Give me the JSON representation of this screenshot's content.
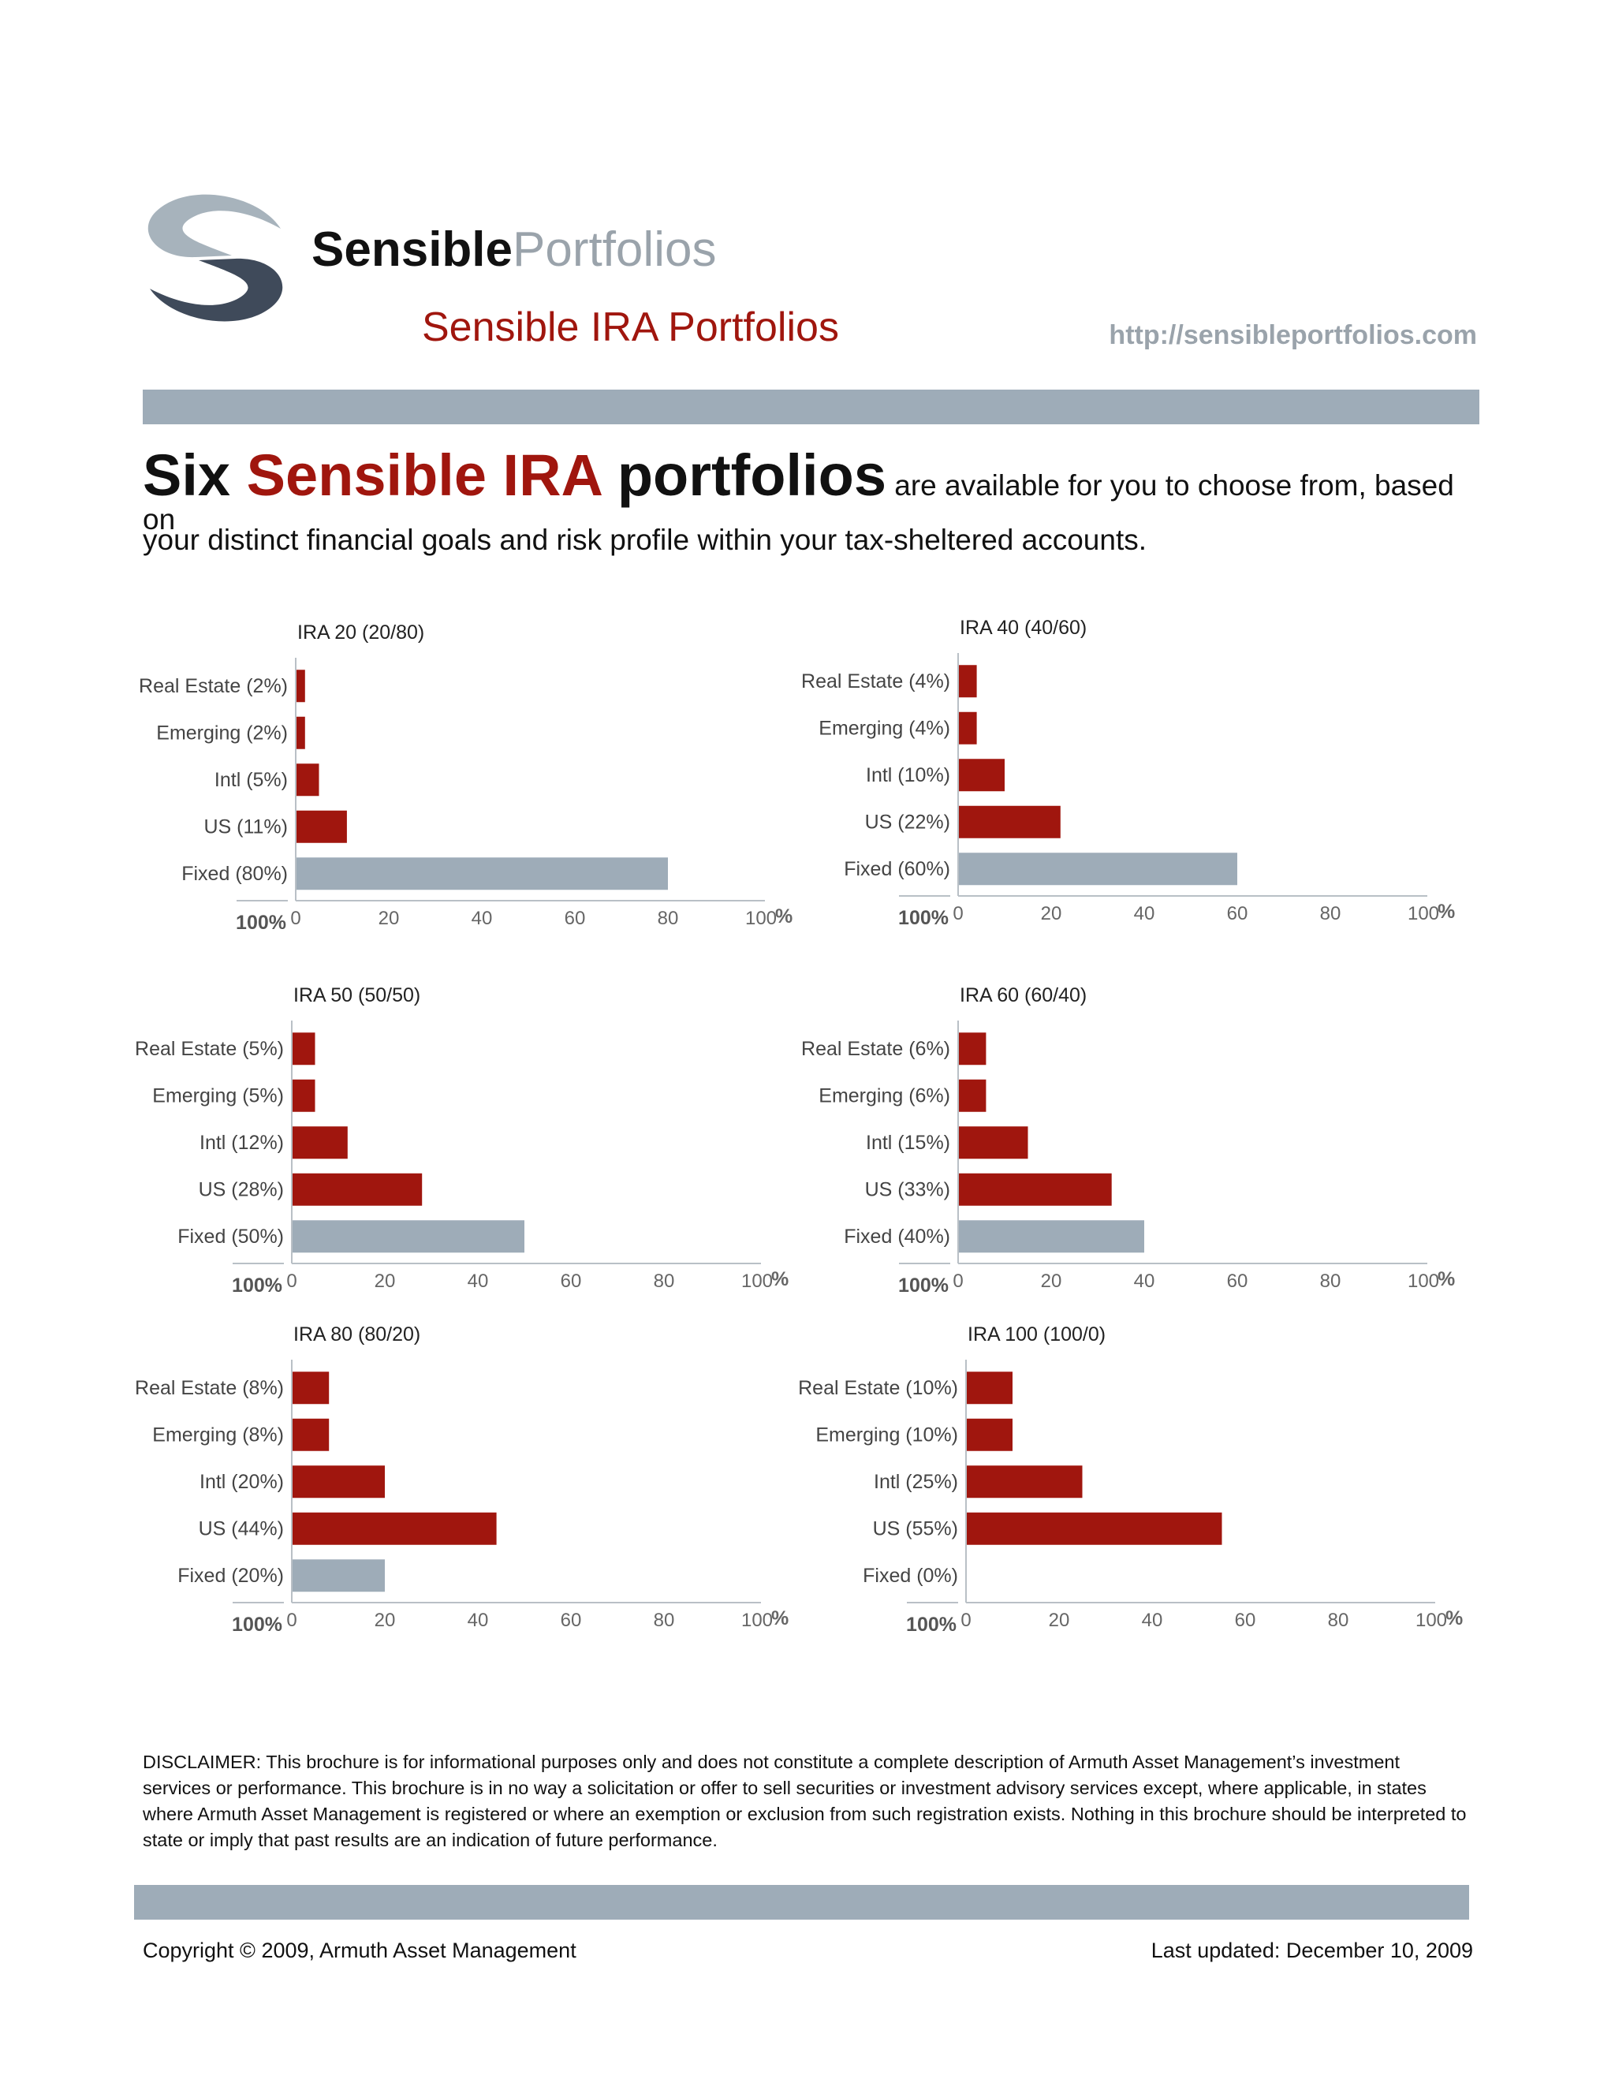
{
  "header": {
    "brand_bold": "Sensible",
    "brand_light": "Portfolios",
    "doc_title": "Sensible IRA Portfolios",
    "url": "http://sensibleportfolios.com"
  },
  "intro": {
    "six": "Six",
    "highlight": "Sensible IRA",
    "portfolios": "portfolios",
    "rest": "are available for you to choose from, based on",
    "line2": "your distinct financial goals and risk profile within your tax-sheltered accounts."
  },
  "colors": {
    "equity_bar": "#a0160e",
    "fixed_bar": "#9eacb8",
    "accent": "#a0160e",
    "rule": "#9eacb8"
  },
  "chart_data": [
    {
      "type": "bar",
      "orientation": "horizontal",
      "title": "IRA 20 (20/80)",
      "categories": [
        "Real Estate (2%)",
        "Emerging (2%)",
        "Intl (5%)",
        "US (11%)",
        "Fixed (80%)"
      ],
      "values": [
        2,
        2,
        5,
        11,
        80
      ],
      "xlim": [
        0,
        100
      ],
      "xticks": [
        "0",
        "20",
        "40",
        "60",
        "80",
        "100"
      ],
      "unit_label": "%",
      "total_label": "100%"
    },
    {
      "type": "bar",
      "orientation": "horizontal",
      "title": "IRA 40 (40/60)",
      "categories": [
        "Real Estate (4%)",
        "Emerging (4%)",
        "Intl (10%)",
        "US (22%)",
        "Fixed (60%)"
      ],
      "values": [
        4,
        4,
        10,
        22,
        60
      ],
      "xlim": [
        0,
        100
      ],
      "xticks": [
        "0",
        "20",
        "40",
        "60",
        "80",
        "100"
      ],
      "unit_label": "%",
      "total_label": "100%"
    },
    {
      "type": "bar",
      "orientation": "horizontal",
      "title": "IRA 50 (50/50)",
      "categories": [
        "Real Estate (5%)",
        "Emerging (5%)",
        "Intl (12%)",
        "US (28%)",
        "Fixed (50%)"
      ],
      "values": [
        5,
        5,
        12,
        28,
        50
      ],
      "xlim": [
        0,
        100
      ],
      "xticks": [
        "0",
        "20",
        "40",
        "60",
        "80",
        "100"
      ],
      "unit_label": "%",
      "total_label": "100%"
    },
    {
      "type": "bar",
      "orientation": "horizontal",
      "title": "IRA 60 (60/40)",
      "categories": [
        "Real Estate (6%)",
        "Emerging (6%)",
        "Intl (15%)",
        "US (33%)",
        "Fixed (40%)"
      ],
      "values": [
        6,
        6,
        15,
        33,
        40
      ],
      "xlim": [
        0,
        100
      ],
      "xticks": [
        "0",
        "20",
        "40",
        "60",
        "80",
        "100"
      ],
      "unit_label": "%",
      "total_label": "100%"
    },
    {
      "type": "bar",
      "orientation": "horizontal",
      "title": "IRA 80 (80/20)",
      "categories": [
        "Real Estate (8%)",
        "Emerging (8%)",
        "Intl (20%)",
        "US (44%)",
        "Fixed (20%)"
      ],
      "values": [
        8,
        8,
        20,
        44,
        20
      ],
      "xlim": [
        0,
        100
      ],
      "xticks": [
        "0",
        "20",
        "40",
        "60",
        "80",
        "100"
      ],
      "unit_label": "%",
      "total_label": "100%"
    },
    {
      "type": "bar",
      "orientation": "horizontal",
      "title": "IRA 100 (100/0)",
      "categories": [
        "Real Estate (10%)",
        "Emerging (10%)",
        "Intl (25%)",
        "US (55%)",
        "Fixed (0%)"
      ],
      "values": [
        10,
        10,
        25,
        55,
        0
      ],
      "xlim": [
        0,
        100
      ],
      "xticks": [
        "0",
        "20",
        "40",
        "60",
        "80",
        "100"
      ],
      "unit_label": "%",
      "total_label": "100%"
    }
  ],
  "footer": {
    "disclaimer": "DISCLAIMER: This brochure is for informational purposes only and does not constitute a complete description of Armuth Asset Management’s investment services or performance. This brochure is in no way a solicitation or offer to sell securities or investment advisory services except, where applicable, in states where Armuth Asset Management is registered or where an exemption or exclusion from such registration exists. Nothing in this brochure should be interpreted to state or imply that past results are an indication of future performance.",
    "copyright": "Copyright © 2009, Armuth Asset Management",
    "last_updated": "Last updated: December 10, 2009"
  }
}
